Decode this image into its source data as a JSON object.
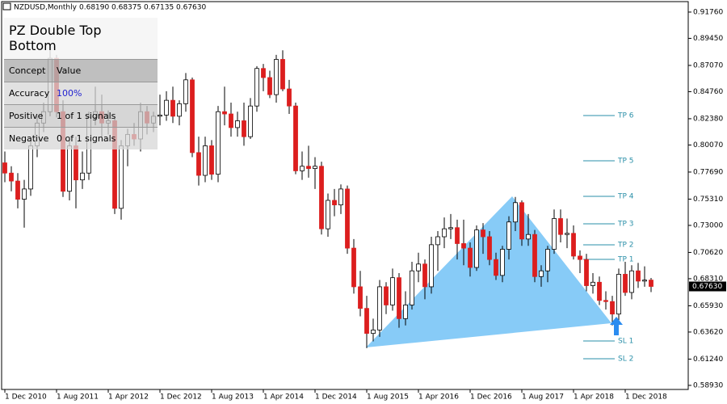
{
  "header": {
    "symbol": "NZDUSD,Monthly",
    "quote": [
      "0.68190",
      "0.68375",
      "0.67135",
      "0.67630"
    ]
  },
  "panel": {
    "title": "PZ Double Top Bottom",
    "columns": [
      "Concept",
      "Value"
    ],
    "rows": [
      [
        "Accuracy",
        "100%"
      ],
      [
        "Positive",
        "1 of 1 signals"
      ],
      [
        "Negative",
        "0 of 1 signals"
      ]
    ]
  },
  "chart_data": {
    "type": "candlestick",
    "up_color": "#ffffff",
    "down_color": "#dc1e1e",
    "categories": [
      "1 Dec 2010",
      null,
      null,
      null,
      null,
      null,
      null,
      null,
      "1 Aug 2011",
      null,
      null,
      null,
      null,
      null,
      null,
      null,
      "1 Apr 2012",
      null,
      null,
      null,
      null,
      null,
      null,
      null,
      "1 Dec 2012",
      null,
      null,
      null,
      null,
      null,
      null,
      null,
      "1 Aug 2013",
      null,
      null,
      null,
      null,
      null,
      null,
      null,
      "1 Apr 2014",
      null,
      null,
      null,
      null,
      null,
      null,
      null,
      "1 Dec 2014",
      null,
      null,
      null,
      null,
      null,
      null,
      null,
      "1 Aug 2015",
      null,
      null,
      null,
      null,
      null,
      null,
      null,
      "1 Apr 2016",
      null,
      null,
      null,
      null,
      null,
      null,
      null,
      "1 Dec 2016",
      null,
      null,
      null,
      null,
      null,
      null,
      null,
      "1 Aug 2017",
      null,
      null,
      null,
      null,
      null,
      null,
      null,
      "1 Apr 2018",
      null,
      null,
      null,
      null,
      null,
      null,
      null,
      "1 Dec 2018",
      null,
      null,
      null,
      null
    ],
    "ohlc": [
      [
        0.785,
        0.795,
        0.768,
        0.776
      ],
      [
        0.776,
        0.782,
        0.76,
        0.769
      ],
      [
        0.769,
        0.776,
        0.745,
        0.753
      ],
      [
        0.753,
        0.77,
        0.728,
        0.762
      ],
      [
        0.762,
        0.805,
        0.756,
        0.8
      ],
      [
        0.8,
        0.826,
        0.79,
        0.82
      ],
      [
        0.82,
        0.838,
        0.812,
        0.83
      ],
      [
        0.83,
        0.884,
        0.826,
        0.877
      ],
      [
        0.877,
        0.88,
        0.825,
        0.83
      ],
      [
        0.83,
        0.84,
        0.755,
        0.76
      ],
      [
        0.76,
        0.806,
        0.752,
        0.8
      ],
      [
        0.8,
        0.808,
        0.745,
        0.77
      ],
      [
        0.77,
        0.795,
        0.762,
        0.776
      ],
      [
        0.776,
        0.83,
        0.77,
        0.825
      ],
      [
        0.825,
        0.852,
        0.818,
        0.83
      ],
      [
        0.83,
        0.845,
        0.808,
        0.82
      ],
      [
        0.82,
        0.831,
        0.81,
        0.822
      ],
      [
        0.822,
        0.826,
        0.74,
        0.745
      ],
      [
        0.745,
        0.805,
        0.735,
        0.8
      ],
      [
        0.8,
        0.815,
        0.782,
        0.81
      ],
      [
        0.81,
        0.82,
        0.8,
        0.806
      ],
      [
        0.806,
        0.838,
        0.795,
        0.83
      ],
      [
        0.83,
        0.835,
        0.81,
        0.82
      ],
      [
        0.82,
        0.83,
        0.812,
        0.826
      ],
      [
        0.826,
        0.845,
        0.818,
        0.827
      ],
      [
        0.827,
        0.848,
        0.822,
        0.84
      ],
      [
        0.84,
        0.852,
        0.82,
        0.826
      ],
      [
        0.826,
        0.84,
        0.818,
        0.837
      ],
      [
        0.837,
        0.864,
        0.83,
        0.858
      ],
      [
        0.858,
        0.86,
        0.79,
        0.794
      ],
      [
        0.794,
        0.808,
        0.765,
        0.774
      ],
      [
        0.774,
        0.808,
        0.768,
        0.8
      ],
      [
        0.8,
        0.805,
        0.77,
        0.775
      ],
      [
        0.775,
        0.835,
        0.768,
        0.83
      ],
      [
        0.83,
        0.852,
        0.818,
        0.828
      ],
      [
        0.828,
        0.838,
        0.808,
        0.816
      ],
      [
        0.816,
        0.83,
        0.808,
        0.822
      ],
      [
        0.822,
        0.838,
        0.8,
        0.808
      ],
      [
        0.808,
        0.842,
        0.806,
        0.835
      ],
      [
        0.835,
        0.87,
        0.83,
        0.868
      ],
      [
        0.868,
        0.872,
        0.848,
        0.86
      ],
      [
        0.86,
        0.866,
        0.842,
        0.845
      ],
      [
        0.845,
        0.88,
        0.838,
        0.876
      ],
      [
        0.876,
        0.884,
        0.848,
        0.85
      ],
      [
        0.85,
        0.858,
        0.828,
        0.835
      ],
      [
        0.835,
        0.838,
        0.775,
        0.778
      ],
      [
        0.778,
        0.795,
        0.77,
        0.782
      ],
      [
        0.782,
        0.8,
        0.772,
        0.78
      ],
      [
        0.78,
        0.79,
        0.762,
        0.782
      ],
      [
        0.782,
        0.786,
        0.722,
        0.727
      ],
      [
        0.727,
        0.758,
        0.72,
        0.752
      ],
      [
        0.752,
        0.762,
        0.738,
        0.748
      ],
      [
        0.748,
        0.766,
        0.74,
        0.762
      ],
      [
        0.762,
        0.765,
        0.705,
        0.71
      ],
      [
        0.71,
        0.718,
        0.67,
        0.676
      ],
      [
        0.676,
        0.69,
        0.65,
        0.657
      ],
      [
        0.657,
        0.668,
        0.622,
        0.635
      ],
      [
        0.635,
        0.648,
        0.628,
        0.638
      ],
      [
        0.638,
        0.682,
        0.632,
        0.676
      ],
      [
        0.676,
        0.68,
        0.652,
        0.66
      ],
      [
        0.66,
        0.692,
        0.655,
        0.684
      ],
      [
        0.684,
        0.688,
        0.64,
        0.648
      ],
      [
        0.648,
        0.672,
        0.642,
        0.66
      ],
      [
        0.66,
        0.698,
        0.656,
        0.69
      ],
      [
        0.69,
        0.706,
        0.68,
        0.696
      ],
      [
        0.696,
        0.7,
        0.665,
        0.676
      ],
      [
        0.676,
        0.72,
        0.67,
        0.713
      ],
      [
        0.713,
        0.725,
        0.69,
        0.72
      ],
      [
        0.72,
        0.737,
        0.71,
        0.727
      ],
      [
        0.727,
        0.74,
        0.718,
        0.728
      ],
      [
        0.728,
        0.735,
        0.7,
        0.714
      ],
      [
        0.714,
        0.735,
        0.695,
        0.71
      ],
      [
        0.71,
        0.715,
        0.685,
        0.693
      ],
      [
        0.693,
        0.73,
        0.69,
        0.726
      ],
      [
        0.726,
        0.732,
        0.705,
        0.72
      ],
      [
        0.72,
        0.725,
        0.695,
        0.7
      ],
      [
        0.7,
        0.706,
        0.682,
        0.686
      ],
      [
        0.686,
        0.712,
        0.68,
        0.709
      ],
      [
        0.709,
        0.738,
        0.7,
        0.733
      ],
      [
        0.733,
        0.755,
        0.725,
        0.75
      ],
      [
        0.75,
        0.752,
        0.712,
        0.718
      ],
      [
        0.718,
        0.74,
        0.712,
        0.722
      ],
      [
        0.722,
        0.726,
        0.68,
        0.685
      ],
      [
        0.685,
        0.695,
        0.676,
        0.69
      ],
      [
        0.69,
        0.712,
        0.68,
        0.709
      ],
      [
        0.709,
        0.744,
        0.705,
        0.736
      ],
      [
        0.736,
        0.744,
        0.715,
        0.722
      ],
      [
        0.722,
        0.736,
        0.71,
        0.723
      ],
      [
        0.723,
        0.73,
        0.7,
        0.703
      ],
      [
        0.703,
        0.708,
        0.688,
        0.7
      ],
      [
        0.7,
        0.705,
        0.672,
        0.677
      ],
      [
        0.677,
        0.688,
        0.67,
        0.68
      ],
      [
        0.68,
        0.685,
        0.66,
        0.664
      ],
      [
        0.664,
        0.672,
        0.656,
        0.663
      ],
      [
        0.663,
        0.668,
        0.642,
        0.652
      ],
      [
        0.652,
        0.692,
        0.646,
        0.687
      ],
      [
        0.687,
        0.698,
        0.668,
        0.671
      ],
      [
        0.671,
        0.695,
        0.665,
        0.69
      ],
      [
        0.69,
        0.697,
        0.675,
        0.681
      ],
      [
        0.681,
        0.694,
        0.676,
        0.6819
      ],
      [
        0.6819,
        0.68375,
        0.67135,
        0.6763
      ]
    ],
    "ylim": [
      0.5857,
      0.9268
    ],
    "yticks": [
      {
        "value": 0.9176,
        "label": "0.91760"
      },
      {
        "value": 0.8945,
        "label": "0.89450"
      },
      {
        "value": 0.8707,
        "label": "0.87070"
      },
      {
        "value": 0.8476,
        "label": "0.84760"
      },
      {
        "value": 0.8238,
        "label": "0.82380"
      },
      {
        "value": 0.8007,
        "label": "0.80070"
      },
      {
        "value": 0.7769,
        "label": "0.77690"
      },
      {
        "value": 0.7531,
        "label": "0.75310"
      },
      {
        "value": 0.73,
        "label": "0.73000"
      },
      {
        "value": 0.7062,
        "label": "0.70620"
      },
      {
        "value": 0.6831,
        "label": "0.68310"
      },
      {
        "value": 0.6593,
        "label": "0.65930"
      },
      {
        "value": 0.6362,
        "label": "0.63620"
      },
      {
        "value": 0.6124,
        "label": "0.61240"
      },
      {
        "value": 0.5893,
        "label": "0.58930"
      }
    ],
    "levels": [
      {
        "label": "TP 6",
        "value": 0.8266
      },
      {
        "label": "TP 5",
        "value": 0.7868
      },
      {
        "label": "TP 4",
        "value": 0.7555
      },
      {
        "label": "TP 3",
        "value": 0.7314
      },
      {
        "label": "TP 2",
        "value": 0.7129
      },
      {
        "label": "TP 1",
        "value": 0.7001
      },
      {
        "label": "SL 1",
        "value": 0.6283
      },
      {
        "label": "SL 2",
        "value": 0.6127
      }
    ],
    "level_color": "#2a8fa8"
  }
}
